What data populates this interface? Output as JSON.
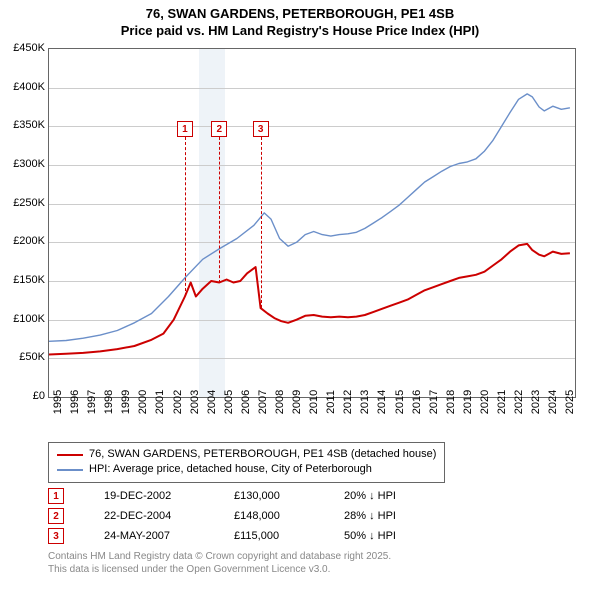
{
  "title_line1": "76, SWAN GARDENS, PETERBOROUGH, PE1 4SB",
  "title_line2": "Price paid vs. HM Land Registry's House Price Index (HPI)",
  "chart": {
    "type": "line",
    "x_min_year": 1995,
    "x_max_year": 2025.8,
    "ylim": [
      0,
      450000
    ],
    "ytick_step": 50000,
    "y_ticks": [
      {
        "v": 0,
        "label": "£0"
      },
      {
        "v": 50000,
        "label": "£50K"
      },
      {
        "v": 100000,
        "label": "£100K"
      },
      {
        "v": 150000,
        "label": "£150K"
      },
      {
        "v": 200000,
        "label": "£200K"
      },
      {
        "v": 250000,
        "label": "£250K"
      },
      {
        "v": 300000,
        "label": "£300K"
      },
      {
        "v": 350000,
        "label": "£350K"
      },
      {
        "v": 400000,
        "label": "£400K"
      },
      {
        "v": 450000,
        "label": "£450K"
      }
    ],
    "x_ticks": [
      1995,
      1996,
      1997,
      1998,
      1999,
      2000,
      2001,
      2002,
      2003,
      2004,
      2005,
      2006,
      2007,
      2008,
      2009,
      2010,
      2011,
      2012,
      2013,
      2014,
      2015,
      2016,
      2017,
      2018,
      2019,
      2020,
      2021,
      2022,
      2023,
      2024,
      2025
    ],
    "background_color": "#ffffff",
    "grid_color": "#cccccc",
    "band_color": "#eef3f8",
    "band": {
      "from": 2003.8,
      "to": 2005.3
    },
    "series": [
      {
        "name": "property",
        "color": "#cc0000",
        "width": 2,
        "points": [
          [
            1995.0,
            55000
          ],
          [
            1996.0,
            56000
          ],
          [
            1997.0,
            57000
          ],
          [
            1998.0,
            59000
          ],
          [
            1999.0,
            62000
          ],
          [
            2000.0,
            66000
          ],
          [
            2001.0,
            74000
          ],
          [
            2001.7,
            82000
          ],
          [
            2002.3,
            100000
          ],
          [
            2002.96,
            130000
          ],
          [
            2003.3,
            148000
          ],
          [
            2003.6,
            130000
          ],
          [
            2004.0,
            140000
          ],
          [
            2004.5,
            150000
          ],
          [
            2004.97,
            148000
          ],
          [
            2005.4,
            152000
          ],
          [
            2005.8,
            148000
          ],
          [
            2006.2,
            150000
          ],
          [
            2006.6,
            160000
          ],
          [
            2007.1,
            168000
          ],
          [
            2007.39,
            115000
          ],
          [
            2007.8,
            108000
          ],
          [
            2008.2,
            102000
          ],
          [
            2008.6,
            98000
          ],
          [
            2009.0,
            96000
          ],
          [
            2009.5,
            100000
          ],
          [
            2010.0,
            105000
          ],
          [
            2010.5,
            106000
          ],
          [
            2011.0,
            104000
          ],
          [
            2011.5,
            103000
          ],
          [
            2012.0,
            104000
          ],
          [
            2012.5,
            103000
          ],
          [
            2013.0,
            104000
          ],
          [
            2013.5,
            106000
          ],
          [
            2014.0,
            110000
          ],
          [
            2014.5,
            114000
          ],
          [
            2015.0,
            118000
          ],
          [
            2015.5,
            122000
          ],
          [
            2016.0,
            126000
          ],
          [
            2016.5,
            132000
          ],
          [
            2017.0,
            138000
          ],
          [
            2017.5,
            142000
          ],
          [
            2018.0,
            146000
          ],
          [
            2018.5,
            150000
          ],
          [
            2019.0,
            154000
          ],
          [
            2019.5,
            156000
          ],
          [
            2020.0,
            158000
          ],
          [
            2020.5,
            162000
          ],
          [
            2021.0,
            170000
          ],
          [
            2021.5,
            178000
          ],
          [
            2022.0,
            188000
          ],
          [
            2022.5,
            196000
          ],
          [
            2023.0,
            198000
          ],
          [
            2023.3,
            190000
          ],
          [
            2023.7,
            184000
          ],
          [
            2024.0,
            182000
          ],
          [
            2024.5,
            188000
          ],
          [
            2025.0,
            185000
          ],
          [
            2025.5,
            186000
          ]
        ]
      },
      {
        "name": "hpi",
        "color": "#6b8fc9",
        "width": 1.4,
        "points": [
          [
            1995.0,
            72000
          ],
          [
            1996.0,
            73000
          ],
          [
            1997.0,
            76000
          ],
          [
            1998.0,
            80000
          ],
          [
            1999.0,
            86000
          ],
          [
            2000.0,
            96000
          ],
          [
            2001.0,
            108000
          ],
          [
            2002.0,
            130000
          ],
          [
            2003.0,
            155000
          ],
          [
            2004.0,
            178000
          ],
          [
            2005.0,
            192000
          ],
          [
            2006.0,
            205000
          ],
          [
            2007.0,
            222000
          ],
          [
            2007.6,
            238000
          ],
          [
            2008.0,
            230000
          ],
          [
            2008.5,
            205000
          ],
          [
            2009.0,
            195000
          ],
          [
            2009.5,
            200000
          ],
          [
            2010.0,
            210000
          ],
          [
            2010.5,
            214000
          ],
          [
            2011.0,
            210000
          ],
          [
            2011.5,
            208000
          ],
          [
            2012.0,
            210000
          ],
          [
            2012.5,
            211000
          ],
          [
            2013.0,
            213000
          ],
          [
            2013.5,
            218000
          ],
          [
            2014.0,
            225000
          ],
          [
            2014.5,
            232000
          ],
          [
            2015.0,
            240000
          ],
          [
            2015.5,
            248000
          ],
          [
            2016.0,
            258000
          ],
          [
            2016.5,
            268000
          ],
          [
            2017.0,
            278000
          ],
          [
            2017.5,
            285000
          ],
          [
            2018.0,
            292000
          ],
          [
            2018.5,
            298000
          ],
          [
            2019.0,
            302000
          ],
          [
            2019.5,
            304000
          ],
          [
            2020.0,
            308000
          ],
          [
            2020.5,
            318000
          ],
          [
            2021.0,
            332000
          ],
          [
            2021.5,
            350000
          ],
          [
            2022.0,
            368000
          ],
          [
            2022.5,
            385000
          ],
          [
            2023.0,
            392000
          ],
          [
            2023.3,
            388000
          ],
          [
            2023.7,
            375000
          ],
          [
            2024.0,
            370000
          ],
          [
            2024.5,
            376000
          ],
          [
            2025.0,
            372000
          ],
          [
            2025.5,
            374000
          ]
        ]
      }
    ],
    "markers": [
      {
        "n": "1",
        "year": 2002.96,
        "price": 130000,
        "top": 72
      },
      {
        "n": "2",
        "year": 2004.97,
        "price": 148000,
        "top": 72
      },
      {
        "n": "3",
        "year": 2007.39,
        "price": 115000,
        "top": 72
      }
    ]
  },
  "legend": {
    "items": [
      {
        "color": "#cc0000",
        "width": 2,
        "label": "76, SWAN GARDENS, PETERBOROUGH, PE1 4SB (detached house)"
      },
      {
        "color": "#6b8fc9",
        "width": 1.4,
        "label": "HPI: Average price, detached house, City of Peterborough"
      }
    ]
  },
  "marker_table": [
    {
      "n": "1",
      "date": "19-DEC-2002",
      "price": "£130,000",
      "change": "20% ↓ HPI"
    },
    {
      "n": "2",
      "date": "22-DEC-2004",
      "price": "£148,000",
      "change": "28% ↓ HPI"
    },
    {
      "n": "3",
      "date": "24-MAY-2007",
      "price": "£115,000",
      "change": "50% ↓ HPI"
    }
  ],
  "footer_line1": "Contains HM Land Registry data © Crown copyright and database right 2025.",
  "footer_line2": "This data is licensed under the Open Government Licence v3.0."
}
